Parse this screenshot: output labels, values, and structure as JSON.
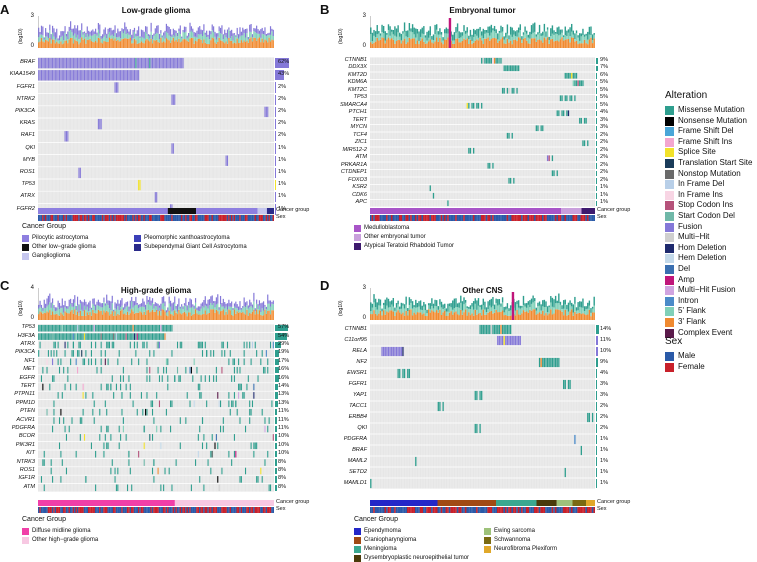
{
  "panels": [
    {
      "letter": "A",
      "title": "Low-grade glioma",
      "ylabel": "(log10)",
      "ymax": "3",
      "ymin": "0",
      "genes": [
        {
          "name": "BRAF",
          "pct": "62%"
        },
        {
          "name": "KIAA1549",
          "pct": "43%"
        },
        {
          "name": "FGFR1",
          "pct": "2%"
        },
        {
          "name": "NTRK2",
          "pct": "2%"
        },
        {
          "name": "PIK3CA",
          "pct": "2%"
        },
        {
          "name": "KRAS",
          "pct": "2%"
        },
        {
          "name": "RAF1",
          "pct": "2%"
        },
        {
          "name": "QKI",
          "pct": "1%"
        },
        {
          "name": "MYB",
          "pct": "1%"
        },
        {
          "name": "ROS1",
          "pct": "1%"
        },
        {
          "name": "TP53",
          "pct": "1%"
        },
        {
          "name": "ATRX",
          "pct": "1%"
        },
        {
          "name": "FGFR2",
          "pct": "1%"
        }
      ],
      "track_labels": {
        "cancer": "Cancer group",
        "sex": "Sex"
      },
      "legend_title": "Cancer Group",
      "legend": [
        {
          "label": "Pilocytic astrocytoma",
          "color": "#8e7fe0"
        },
        {
          "label": "Pleomorphic xanthoastrocytoma",
          "color": "#3b3fb8"
        },
        {
          "label": "Other low−grade glioma",
          "color": "#111111"
        },
        {
          "label": "Subependymal Giant Cell Astrocytoma",
          "color": "#2a2a8a"
        },
        {
          "label": "Ganglioglioma",
          "color": "#c5c6ee"
        }
      ]
    },
    {
      "letter": "B",
      "title": "Embryonal tumor",
      "ylabel": "(log10)",
      "ymax": "3",
      "ymin": "0",
      "genes": [
        {
          "name": "CTNNB1",
          "pct": "9%"
        },
        {
          "name": "DDX3X",
          "pct": "7%"
        },
        {
          "name": "KMT2D",
          "pct": "6%"
        },
        {
          "name": "KDM6A",
          "pct": "5%"
        },
        {
          "name": "KMT2C",
          "pct": "5%"
        },
        {
          "name": "TP53",
          "pct": "5%"
        },
        {
          "name": "SMARCA4",
          "pct": "5%"
        },
        {
          "name": "PTCH1",
          "pct": "4%"
        },
        {
          "name": "TERT",
          "pct": "3%"
        },
        {
          "name": "MYCN",
          "pct": "3%"
        },
        {
          "name": "TCF4",
          "pct": "2%"
        },
        {
          "name": "ZIC1",
          "pct": "2%"
        },
        {
          "name": "MIR512-2",
          "pct": "2%"
        },
        {
          "name": "ATM",
          "pct": "2%"
        },
        {
          "name": "PRKAR1A",
          "pct": "2%"
        },
        {
          "name": "CTDNEP1",
          "pct": "2%"
        },
        {
          "name": "FOXO3",
          "pct": "2%"
        },
        {
          "name": "KSR2",
          "pct": "1%"
        },
        {
          "name": "CDK6",
          "pct": "1%"
        },
        {
          "name": "APC",
          "pct": "1%"
        }
      ],
      "track_labels": {
        "cancer": "Cancer group",
        "sex": "Sex"
      },
      "legend_title": "",
      "legend": [
        {
          "label": "Medulloblastoma",
          "color": "#a855c8"
        },
        {
          "label": "Other embryonal tumor",
          "color": "#c9a0dc"
        },
        {
          "label": "Atypical Teratoid Rhabdoid Tumor",
          "color": "#3d1a6e"
        }
      ]
    },
    {
      "letter": "C",
      "title": "High-grade glioma",
      "ylabel": "(log10)",
      "ymax": "4",
      "ymin": "0",
      "genes": [
        {
          "name": "TP53",
          "pct": "57%"
        },
        {
          "name": "H3F3A",
          "pct": "54%"
        },
        {
          "name": "ATRX",
          "pct": "29%"
        },
        {
          "name": "PIK3CA",
          "pct": "19%"
        },
        {
          "name": "NF1",
          "pct": "17%"
        },
        {
          "name": "MET",
          "pct": "16%"
        },
        {
          "name": "EGFR",
          "pct": "16%"
        },
        {
          "name": "TERT",
          "pct": "14%"
        },
        {
          "name": "PTPN11",
          "pct": "13%"
        },
        {
          "name": "PPM1D",
          "pct": "13%"
        },
        {
          "name": "PTEN",
          "pct": "11%"
        },
        {
          "name": "ACVR1",
          "pct": "11%"
        },
        {
          "name": "PDGFRA",
          "pct": "11%"
        },
        {
          "name": "BCOR",
          "pct": "10%"
        },
        {
          "name": "PIK3R1",
          "pct": "10%"
        },
        {
          "name": "KIT",
          "pct": "10%"
        },
        {
          "name": "NTRK3",
          "pct": "8%"
        },
        {
          "name": "ROS1",
          "pct": "8%"
        },
        {
          "name": "IGF1R",
          "pct": "8%"
        },
        {
          "name": "ATM",
          "pct": "8%"
        }
      ],
      "track_labels": {
        "cancer": "Cancer group",
        "sex": "Sex"
      },
      "legend_title": "Cancer Group",
      "legend": [
        {
          "label": "Diffuse midline glioma",
          "color": "#f03fa8"
        },
        {
          "label": "Other high−grade glioma",
          "color": "#f7c8e2"
        }
      ]
    },
    {
      "letter": "D",
      "title": "Other CNS",
      "ylabel": "(log10)",
      "ymax": "3",
      "ymin": "0",
      "genes": [
        {
          "name": "CTNNB1",
          "pct": "14%"
        },
        {
          "name": "C11orf95",
          "pct": "11%"
        },
        {
          "name": "RELA",
          "pct": "10%"
        },
        {
          "name": "NF2",
          "pct": "9%"
        },
        {
          "name": "EWSR1",
          "pct": "4%"
        },
        {
          "name": "FGFR1",
          "pct": "3%"
        },
        {
          "name": "YAP1",
          "pct": "3%"
        },
        {
          "name": "TACC1",
          "pct": "2%"
        },
        {
          "name": "ERBB4",
          "pct": "2%"
        },
        {
          "name": "QKI",
          "pct": "2%"
        },
        {
          "name": "PDGFRA",
          "pct": "1%"
        },
        {
          "name": "BRAF",
          "pct": "1%"
        },
        {
          "name": "MAML2",
          "pct": "1%"
        },
        {
          "name": "SETD2",
          "pct": "1%"
        },
        {
          "name": "MAMLD1",
          "pct": "1%"
        }
      ],
      "track_labels": {
        "cancer": "Cancer group",
        "sex": "Sex"
      },
      "legend_title": "Cancer Group",
      "legend": [
        {
          "label": "Ependymoma",
          "color": "#2327c8"
        },
        {
          "label": "Ewing sarcoma",
          "color": "#9ec27a"
        },
        {
          "label": "Craniopharyngioma",
          "color": "#a14a14"
        },
        {
          "label": "Schwannoma",
          "color": "#7a6a12"
        },
        {
          "label": "Meningioma",
          "color": "#3aa890"
        },
        {
          "label": "Neurofibroma Plexiform",
          "color": "#e0a82a"
        },
        {
          "label": "Dysembryoplastic neuroepithelial tumor",
          "color": "#4a3a0a"
        }
      ]
    }
  ],
  "alteration_legend": {
    "title": "Alteration",
    "items": [
      {
        "label": "Missense Mutation",
        "color": "#2e9e8e"
      },
      {
        "label": "Nonsense Mutation",
        "color": "#000000"
      },
      {
        "label": "Frame Shift Del",
        "color": "#4aa6d8"
      },
      {
        "label": "Frame Shift Ins",
        "color": "#f3a6cf"
      },
      {
        "label": "Splice Site",
        "color": "#f2e22a"
      },
      {
        "label": "Translation Start Site",
        "color": "#1a3c5a"
      },
      {
        "label": "Nonstop Mutation",
        "color": "#6a6a6a"
      },
      {
        "label": "In Frame Del",
        "color": "#b8cfe8"
      },
      {
        "label": "In Frame Ins",
        "color": "#f8d5e4"
      },
      {
        "label": "Stop Codon Ins",
        "color": "#b5527a"
      },
      {
        "label": "Start Codon Del",
        "color": "#6fb8a8"
      },
      {
        "label": "Fusion",
        "color": "#8478d8"
      },
      {
        "label": "Multi−Hit",
        "color": "#cfcfcf"
      },
      {
        "label": "Hom Deletion",
        "color": "#1e2a6e"
      },
      {
        "label": "Hem Deletion",
        "color": "#c3d9ea"
      },
      {
        "label": "Del",
        "color": "#3a6fb0"
      },
      {
        "label": "Amp",
        "color": "#c0157a"
      },
      {
        "label": "Multi−Hit Fusion",
        "color": "#d0a4e0"
      },
      {
        "label": "Intron",
        "color": "#4a8ac8"
      },
      {
        "label": "5' Flank",
        "color": "#80d0b8"
      },
      {
        "label": "3' Flank",
        "color": "#f08a30"
      },
      {
        "label": "Complex Event",
        "color": "#5a1a4a"
      }
    ]
  },
  "sex_legend": {
    "title": "Sex",
    "items": [
      {
        "label": "Male",
        "color": "#2a5aa8"
      },
      {
        "label": "Female",
        "color": "#c8202a"
      }
    ]
  },
  "chart_data": {
    "type": "heatmap",
    "subtype": "oncoprint",
    "panels": [
      {
        "title": "Low-grade glioma",
        "genes": [
          "BRAF",
          "KIAA1549",
          "FGFR1",
          "NTRK2",
          "PIK3CA",
          "KRAS",
          "RAF1",
          "QKI",
          "MYB",
          "ROS1",
          "TP53",
          "ATRX",
          "FGFR2"
        ],
        "percent_altered": [
          62,
          43,
          2,
          2,
          2,
          2,
          2,
          1,
          1,
          1,
          1,
          1,
          1
        ],
        "top_axis": {
          "label": "(log10)",
          "ylim": [
            0,
            3
          ]
        }
      },
      {
        "title": "Embryonal tumor",
        "genes": [
          "CTNNB1",
          "DDX3X",
          "KMT2D",
          "KDM6A",
          "KMT2C",
          "TP53",
          "SMARCA4",
          "PTCH1",
          "TERT",
          "MYCN",
          "TCF4",
          "ZIC1",
          "MIR512-2",
          "ATM",
          "PRKAR1A",
          "CTDNEP1",
          "FOXO3",
          "KSR2",
          "CDK6",
          "APC"
        ],
        "percent_altered": [
          9,
          7,
          6,
          5,
          5,
          5,
          5,
          4,
          3,
          3,
          2,
          2,
          2,
          2,
          2,
          2,
          2,
          1,
          1,
          1
        ],
        "top_axis": {
          "label": "(log10)",
          "ylim": [
            0,
            3
          ]
        }
      },
      {
        "title": "High-grade glioma",
        "genes": [
          "TP53",
          "H3F3A",
          "ATRX",
          "PIK3CA",
          "NF1",
          "MET",
          "EGFR",
          "TERT",
          "PTPN11",
          "PPM1D",
          "PTEN",
          "ACVR1",
          "PDGFRA",
          "BCOR",
          "PIK3R1",
          "KIT",
          "NTRK3",
          "ROS1",
          "IGF1R",
          "ATM"
        ],
        "percent_altered": [
          57,
          54,
          29,
          19,
          17,
          16,
          16,
          14,
          13,
          13,
          11,
          11,
          11,
          10,
          10,
          10,
          8,
          8,
          8,
          8
        ],
        "top_axis": {
          "label": "(log10)",
          "ylim": [
            0,
            4
          ]
        }
      },
      {
        "title": "Other CNS",
        "genes": [
          "CTNNB1",
          "C11orf95",
          "RELA",
          "NF2",
          "EWSR1",
          "FGFR1",
          "YAP1",
          "TACC1",
          "ERBB4",
          "QKI",
          "PDGFRA",
          "BRAF",
          "MAML2",
          "SETD2",
          "MAMLD1"
        ],
        "percent_altered": [
          14,
          11,
          10,
          9,
          4,
          3,
          3,
          2,
          2,
          2,
          1,
          1,
          1,
          1,
          1
        ],
        "top_axis": {
          "label": "(log10)",
          "ylim": [
            0,
            3
          ]
        }
      }
    ]
  }
}
